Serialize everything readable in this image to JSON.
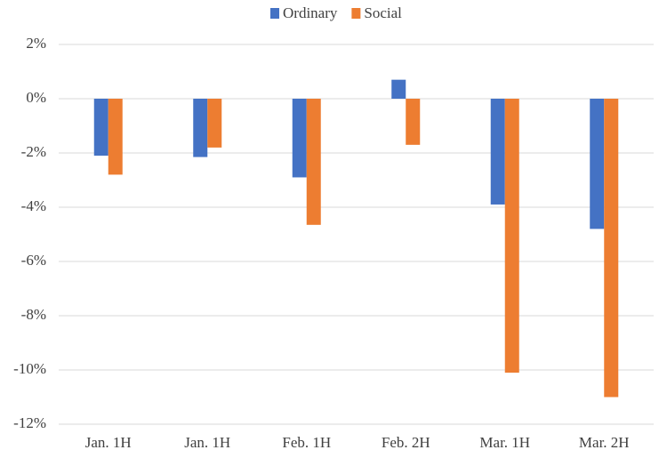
{
  "chart_data": {
    "type": "bar",
    "categories": [
      "Jan. 1H",
      "Jan. 1H",
      "Feb. 1H",
      "Feb. 2H",
      "Mar. 1H",
      "Mar. 2H"
    ],
    "series": [
      {
        "name": "Ordinary",
        "color": "#4472c4",
        "values": [
          -2.1,
          -2.15,
          -2.9,
          0.7,
          -3.9,
          -4.8
        ]
      },
      {
        "name": "Social",
        "color": "#ed7d31",
        "values": [
          -2.8,
          -1.8,
          -4.65,
          -1.7,
          -10.1,
          -11.0
        ]
      }
    ],
    "ylim": [
      -12,
      2
    ],
    "yticks": [
      {
        "value": -12,
        "label": "-12%"
      },
      {
        "value": -10,
        "label": "-10%"
      },
      {
        "value": -8,
        "label": "-8%"
      },
      {
        "value": -6,
        "label": "-6%"
      },
      {
        "value": -4,
        "label": "-4%"
      },
      {
        "value": -2,
        "label": "-2%"
      },
      {
        "value": 0,
        "label": "0%"
      },
      {
        "value": 2,
        "label": "2%"
      }
    ],
    "grid": true,
    "legend": "top"
  }
}
